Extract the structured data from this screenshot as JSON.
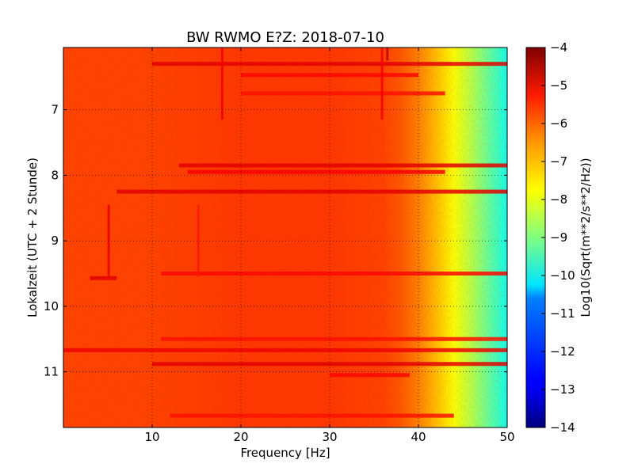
{
  "chart_data": {
    "type": "heatmap",
    "title": "BW RWMO E?Z: 2018-07-10",
    "xlabel": "Frequency [Hz]",
    "ylabel": "Lokalzeit (UTC + 2 Stunde)",
    "colorbar_label": "Log10(Sqrt(m**2/s**2/Hz))",
    "xlim": [
      0,
      50
    ],
    "ylim": [
      11.85,
      6.05
    ],
    "y_axis_inverted": true,
    "xticks": [
      10,
      20,
      30,
      40,
      50
    ],
    "xtick_labels": [
      "10",
      "20",
      "30",
      "40",
      "50"
    ],
    "yticks": [
      7,
      8,
      9,
      10,
      11
    ],
    "ytick_labels": [
      "7",
      "8",
      "9",
      "10",
      "11"
    ],
    "clim": [
      -14,
      -4
    ],
    "colorbar_ticks": [
      -4,
      -5,
      -6,
      -7,
      -8,
      -9,
      -10,
      -11,
      -12,
      -13,
      -14
    ],
    "colorbar_tick_labels": [
      "−4",
      "−5",
      "−6",
      "−7",
      "−8",
      "−9",
      "−10",
      "−11",
      "−12",
      "−13",
      "−14"
    ],
    "colormap": "jet",
    "grid": true,
    "frequency_profile_hz": [
      0,
      5,
      10,
      20,
      30,
      36,
      38,
      40,
      42,
      44,
      46,
      48,
      50
    ],
    "frequency_profile_value": [
      -5.9,
      -5.9,
      -5.9,
      -5.8,
      -5.8,
      -5.9,
      -6.1,
      -6.5,
      -7.1,
      -7.8,
      -8.5,
      -9.3,
      -10.1
    ],
    "bands": [
      {
        "hour": 6.3,
        "fmin": 10,
        "fmax": 50,
        "value": -5.0
      },
      {
        "hour": 6.47,
        "fmin": 20,
        "fmax": 40,
        "value": -5.3
      },
      {
        "hour": 6.75,
        "fmin": 20,
        "fmax": 43,
        "value": -5.4
      },
      {
        "hour": 7.85,
        "fmin": 13,
        "fmax": 50,
        "value": -5.0
      },
      {
        "hour": 7.95,
        "fmin": 14,
        "fmax": 43,
        "value": -5.2
      },
      {
        "hour": 8.25,
        "fmin": 6,
        "fmax": 50,
        "value": -5.0
      },
      {
        "hour": 9.5,
        "fmin": 11,
        "fmax": 50,
        "value": -5.3
      },
      {
        "hour": 9.57,
        "fmin": 3,
        "fmax": 6,
        "value": -5.0
      },
      {
        "hour": 10.5,
        "fmin": 11,
        "fmax": 50,
        "value": -5.4
      },
      {
        "hour": 10.67,
        "fmin": 0,
        "fmax": 50,
        "value": -5.1
      },
      {
        "hour": 10.88,
        "fmin": 10,
        "fmax": 50,
        "value": -5.0
      },
      {
        "hour": 11.05,
        "fmin": 30,
        "fmax": 39,
        "value": -5.3
      },
      {
        "hour": 11.67,
        "fmin": 12,
        "fmax": 44,
        "value": -5.4
      }
    ],
    "vertical_lines": [
      {
        "freq": 5.1,
        "hour_from": 8.45,
        "hour_to": 9.57,
        "value": -5.1
      },
      {
        "freq": 15.2,
        "hour_from": 8.45,
        "hour_to": 9.55,
        "value": -5.5
      },
      {
        "freq": 17.9,
        "hour_from": 6.05,
        "hour_to": 7.15,
        "value": -5.2
      },
      {
        "freq": 35.9,
        "hour_from": 6.05,
        "hour_to": 7.15,
        "value": -5.2
      },
      {
        "freq": 36.5,
        "hour_from": 6.05,
        "hour_to": 6.25,
        "value": -4.7
      }
    ]
  }
}
